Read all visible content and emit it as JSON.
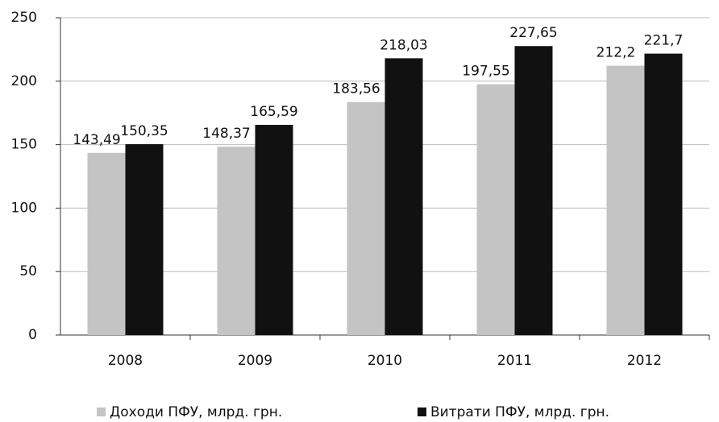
{
  "chart_data": {
    "type": "bar",
    "categories": [
      "2008",
      "2009",
      "2010",
      "2011",
      "2012"
    ],
    "series": [
      {
        "name": "Доходи ПФУ, млрд. грн.",
        "color": "#c4c4c4",
        "values": [
          143.49,
          148.37,
          183.56,
          197.55,
          212.2
        ],
        "value_labels": [
          "143,49",
          "148,37",
          "183,56",
          "197,55",
          "212,2"
        ]
      },
      {
        "name": "Витрати ПФУ, млрд. грн.",
        "color": "#111111",
        "values": [
          150.35,
          165.59,
          218.03,
          227.65,
          221.7
        ],
        "value_labels": [
          "150,35",
          "165,59",
          "218,03",
          "227,65",
          "221,7"
        ]
      }
    ],
    "ylim": [
      0,
      250
    ],
    "yticks": [
      0,
      50,
      100,
      150,
      200,
      250
    ],
    "grid": true,
    "legend": "bottom"
  }
}
